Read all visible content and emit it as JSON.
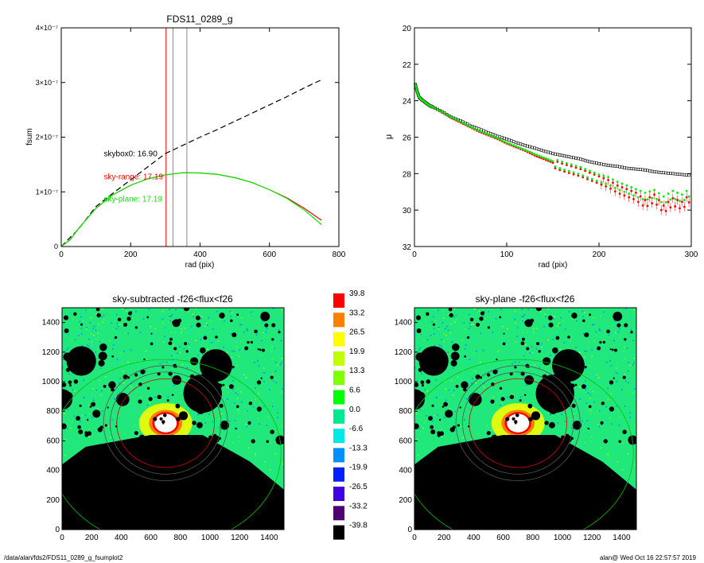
{
  "footer": {
    "left": "/data/alan/fds2/FDS11_0289_g_fsumplot2",
    "right": "alan@  Wed Oct 16 22:57:57 2019"
  },
  "colors": {
    "black": "#000000",
    "red": "#ff0000",
    "green": "#00ee00",
    "gray": "#888888"
  },
  "chart_data": [
    {
      "id": "fsum",
      "type": "line",
      "title": "FDS11_0289_g",
      "xlabel": "rad (pix)",
      "ylabel": "fsum",
      "xlim": [
        0,
        800
      ],
      "ylim": [
        0,
        4e-07
      ],
      "xticks": [
        "0",
        "200",
        "400",
        "600",
        "800"
      ],
      "yticks": [
        "0",
        "1×10⁻⁷",
        "2×10⁻⁷",
        "3×10⁻⁷",
        "4×10⁻⁷"
      ],
      "vlines": [
        {
          "x": 302,
          "color": "#ff0000"
        },
        {
          "x": 322,
          "color": "#888888"
        },
        {
          "x": 362,
          "color": "#888888"
        }
      ],
      "series": [
        {
          "style": "dashed",
          "color": "#000000",
          "x": [
            0,
            50,
            100,
            150,
            200,
            250,
            300,
            350,
            400,
            450,
            500,
            550,
            600,
            650,
            700,
            750
          ],
          "y": [
            0,
            3.2e-08,
            7.3e-08,
            9.8e-08,
            1.22e-07,
            1.46e-07,
            1.7e-07,
            1.85e-07,
            2e-07,
            2.14e-07,
            2.29e-07,
            2.44e-07,
            2.59e-07,
            2.74e-07,
            2.9e-07,
            3.05e-07
          ]
        },
        {
          "style": "solid",
          "color": "#ff0000",
          "x": [
            0,
            25,
            50,
            100,
            150,
            200,
            250,
            300,
            350,
            400,
            450,
            500,
            550,
            600,
            650,
            700,
            750
          ],
          "y": [
            0,
            1.2e-08,
            3.3e-08,
            7e-08,
            9.5e-08,
            1.12e-07,
            1.24e-07,
            1.31e-07,
            1.35e-07,
            1.345e-07,
            1.32e-07,
            1.26e-07,
            1.17e-07,
            1.04e-07,
            8.9e-08,
            7e-08,
            4.8e-08
          ]
        },
        {
          "style": "solid",
          "color": "#00ee00",
          "x": [
            0,
            25,
            50,
            100,
            150,
            200,
            250,
            300,
            350,
            400,
            450,
            500,
            550,
            600,
            650,
            700,
            750
          ],
          "y": [
            0,
            1.2e-08,
            3.3e-08,
            7e-08,
            9.5e-08,
            1.12e-07,
            1.24e-07,
            1.31e-07,
            1.35e-07,
            1.345e-07,
            1.32e-07,
            1.26e-07,
            1.17e-07,
            1.04e-07,
            8.8e-08,
            6.7e-08,
            4e-08
          ]
        }
      ],
      "annotations": [
        {
          "text": "skybox0: 16.90",
          "color": "#000000",
          "x": 180,
          "y": 1.65e-07
        },
        {
          "text": "sky-range: 17.19",
          "color": "#ff0000",
          "x": 180,
          "y": 1.23e-07
        },
        {
          "text": "sky-plane: 17.19",
          "color": "#00ee00",
          "x": 180,
          "y": 8.2e-08
        }
      ]
    },
    {
      "id": "mu",
      "type": "scatter",
      "title": "",
      "xlabel": "rad (pix)",
      "ylabel": "μ",
      "xlim": [
        0,
        300
      ],
      "ylim": [
        32,
        20
      ],
      "xticks": [
        "0",
        "100",
        "200",
        "300"
      ],
      "yticks": [
        "20",
        "22",
        "24",
        "26",
        "28",
        "30",
        "32"
      ],
      "series": [
        {
          "color": "#000000",
          "marker": "square-open",
          "x": [
            1,
            3,
            5,
            8,
            12,
            16,
            20,
            30,
            40,
            50,
            60,
            70,
            80,
            90,
            100,
            110,
            120,
            130,
            140,
            150,
            160,
            170,
            180,
            190,
            200,
            210,
            220,
            230,
            240,
            250,
            260,
            270,
            280,
            290,
            300
          ],
          "y": [
            23.1,
            23.5,
            23.8,
            23.95,
            24.1,
            24.25,
            24.35,
            24.6,
            24.9,
            25.1,
            25.35,
            25.55,
            25.75,
            25.95,
            26.1,
            26.3,
            26.45,
            26.6,
            26.75,
            26.9,
            27.0,
            27.1,
            27.2,
            27.35,
            27.45,
            27.55,
            27.6,
            27.7,
            27.75,
            27.8,
            27.9,
            27.95,
            28.0,
            28.05,
            28.1
          ]
        },
        {
          "color": "#ff0000",
          "marker": "dot",
          "x": [
            1,
            3,
            5,
            8,
            12,
            16,
            20,
            30,
            40,
            50,
            60,
            70,
            80,
            90,
            100,
            110,
            120,
            130,
            140,
            150,
            160,
            170,
            180,
            190,
            200,
            210,
            220,
            230,
            240,
            250,
            260,
            270,
            280,
            290,
            300
          ],
          "y": [
            23.1,
            23.5,
            23.8,
            23.95,
            24.1,
            24.25,
            24.35,
            24.65,
            24.95,
            25.2,
            25.45,
            25.7,
            25.9,
            26.1,
            26.35,
            26.55,
            26.75,
            27.0,
            27.2,
            27.4,
            27.6,
            27.75,
            27.9,
            28.1,
            28.3,
            28.5,
            28.8,
            29.0,
            29.2,
            29.6,
            29.3,
            29.9,
            29.5,
            29.7,
            29.2
          ]
        },
        {
          "color": "#00ee00",
          "marker": "dot",
          "x": [
            1,
            3,
            5,
            8,
            12,
            16,
            20,
            30,
            40,
            50,
            60,
            70,
            80,
            90,
            100,
            110,
            120,
            130,
            140,
            150,
            160,
            170,
            180,
            190,
            200,
            210,
            220,
            230,
            240,
            250,
            260,
            270,
            280,
            290,
            300
          ],
          "y": [
            23.1,
            23.5,
            23.8,
            23.95,
            24.1,
            24.25,
            24.35,
            24.62,
            24.92,
            25.15,
            25.42,
            25.65,
            25.85,
            26.05,
            26.3,
            26.5,
            26.7,
            26.92,
            27.12,
            27.32,
            27.5,
            27.65,
            27.8,
            28.0,
            28.2,
            28.35,
            28.6,
            28.8,
            29.0,
            29.2,
            29.05,
            29.4,
            29.1,
            29.3,
            28.9
          ]
        }
      ]
    },
    {
      "id": "img-left",
      "type": "heatmap",
      "title": "sky-subtracted -f26<flux<f26",
      "xlim": [
        0,
        1500
      ],
      "ylim": [
        0,
        1500
      ],
      "xticks": [
        "0",
        "200",
        "400",
        "600",
        "800",
        "1000",
        "1200",
        "1400"
      ],
      "yticks": [
        "0",
        "200",
        "400",
        "600",
        "800",
        "1000",
        "1200",
        "1400"
      ]
    },
    {
      "id": "img-right",
      "type": "heatmap",
      "title": "sky-plane -f26<flux<f26",
      "xlim": [
        0,
        1500
      ],
      "ylim": [
        0,
        1500
      ],
      "xticks": [
        "0",
        "200",
        "400",
        "600",
        "800",
        "1000",
        "1200",
        "1400"
      ],
      "yticks": [
        "0",
        "200",
        "400",
        "600",
        "800",
        "1000",
        "1200",
        "1400"
      ]
    },
    {
      "id": "colorbar",
      "type": "table",
      "labels": [
        "39.8",
        "33.2",
        "26.5",
        "19.9",
        "13.3",
        "6.6",
        "0.0",
        "-6.6",
        "-13.3",
        "-19.9",
        "-26.5",
        "-33.2",
        "-39.8"
      ],
      "colors": [
        "#ff0000",
        "#ff8000",
        "#ffff00",
        "#c0ff00",
        "#80ff00",
        "#00ff00",
        "#00e890",
        "#00e8e8",
        "#0090ff",
        "#0020ff",
        "#4000e0",
        "#500070",
        "#000000"
      ]
    }
  ]
}
